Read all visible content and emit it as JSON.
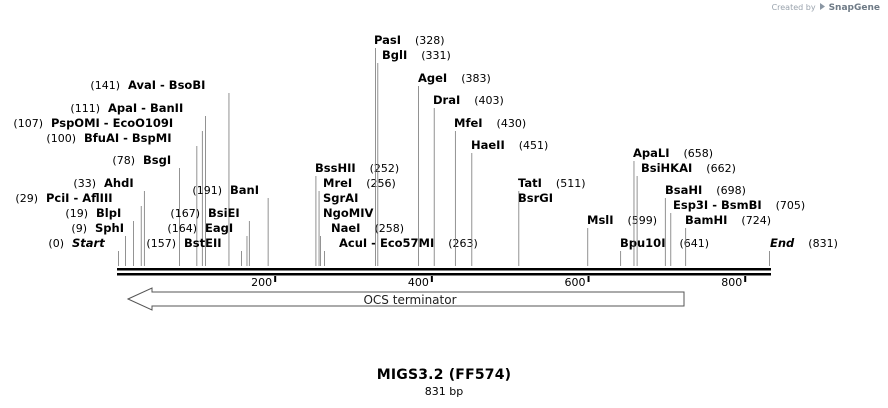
{
  "branding": {
    "created_by": "Created by",
    "product": "SnapGene"
  },
  "title": "MIGS3.2 (FF574)",
  "length_label": "831 bp",
  "axis": {
    "start": 0,
    "end": 831,
    "ticks": [
      200,
      400,
      600,
      800
    ]
  },
  "feature": {
    "label": "OCS terminator",
    "from": 9,
    "to": 724,
    "direction": "reverse"
  },
  "sites": [
    {
      "text": "Start",
      "pos": 0,
      "pos_label": "(0)",
      "italic": true
    },
    {
      "text": "SphI",
      "pos": 9,
      "pos_label": "(9)"
    },
    {
      "text": "BlpI",
      "pos": 19,
      "pos_label": "(19)"
    },
    {
      "text": "PciI  -  AflIII",
      "pos": 29,
      "pos_label": "(29)"
    },
    {
      "text": "AhdI",
      "pos": 33,
      "pos_label": "(33)"
    },
    {
      "text": "BsgI",
      "pos": 78,
      "pos_label": "(78)"
    },
    {
      "text": "BfuAI  -  BspMI",
      "pos": 100,
      "pos_label": "(100)"
    },
    {
      "text": "PspOMI  -  EcoO109I",
      "pos": 107,
      "pos_label": "(107)"
    },
    {
      "text": "ApaI  -  BanII",
      "pos": 111,
      "pos_label": "(111)"
    },
    {
      "text": "AvaI  -  BsoBI",
      "pos": 141,
      "pos_label": "(141)"
    },
    {
      "text": "BstEII",
      "pos": 157,
      "pos_label": "(157)"
    },
    {
      "text": "EagI",
      "pos": 164,
      "pos_label": "(164)"
    },
    {
      "text": "BsiEI",
      "pos": 167,
      "pos_label": "(167)"
    },
    {
      "text": "BanI",
      "pos": 191,
      "pos_label": "(191)"
    },
    {
      "text": "BssHII",
      "pos": 252,
      "pos_label": "(252)"
    },
    {
      "text": "MreI",
      "pos": 256,
      "pos_label": "(256)"
    },
    {
      "text": "SgrAI",
      "pos": 256,
      "pos_label": ""
    },
    {
      "text": "NgoMIV",
      "pos": 258,
      "pos_label": ""
    },
    {
      "text": "NaeI",
      "pos": 258,
      "pos_label": "(258)"
    },
    {
      "text": "AcuI  -  Eco57MI",
      "pos": 263,
      "pos_label": "(263)"
    },
    {
      "text": "PasI",
      "pos": 328,
      "pos_label": "(328)"
    },
    {
      "text": "BglI",
      "pos": 331,
      "pos_label": "(331)"
    },
    {
      "text": "AgeI",
      "pos": 383,
      "pos_label": "(383)"
    },
    {
      "text": "DraI",
      "pos": 403,
      "pos_label": "(403)"
    },
    {
      "text": "MfeI",
      "pos": 430,
      "pos_label": "(430)"
    },
    {
      "text": "HaeII",
      "pos": 451,
      "pos_label": "(451)"
    },
    {
      "text": "TatI",
      "pos": 511,
      "pos_label": "(511)"
    },
    {
      "text": "BsrGI",
      "pos": 511,
      "pos_label": ""
    },
    {
      "text": "MslI",
      "pos": 599,
      "pos_label": "(599)"
    },
    {
      "text": "Bpu10I",
      "pos": 641,
      "pos_label": "(641)"
    },
    {
      "text": "ApaLI",
      "pos": 658,
      "pos_label": "(658)"
    },
    {
      "text": "BsiHKAI",
      "pos": 662,
      "pos_label": "(662)"
    },
    {
      "text": "BsaHI",
      "pos": 698,
      "pos_label": "(698)"
    },
    {
      "text": "Esp3I  -  BsmBI",
      "pos": 705,
      "pos_label": "(705)"
    },
    {
      "text": "BamHI",
      "pos": 724,
      "pos_label": "(724)"
    },
    {
      "text": "End",
      "pos": 831,
      "pos_label": "(831)",
      "italic": true
    }
  ]
}
